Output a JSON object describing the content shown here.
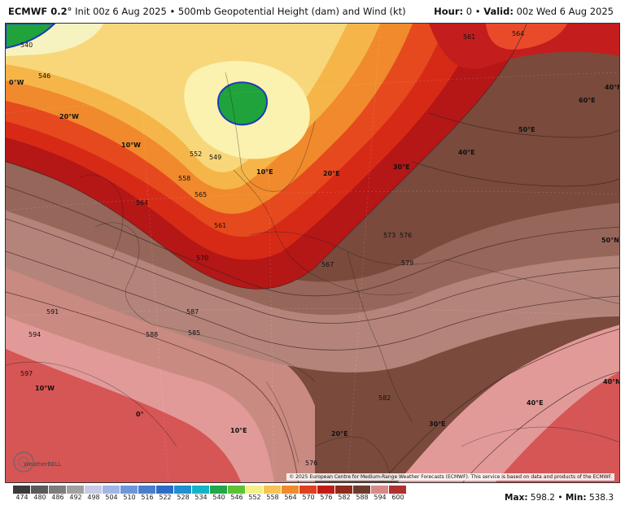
{
  "header": {
    "model": "ECMWF 0.2°",
    "init": "Init 00z 6 Aug 2025",
    "bullet": "•",
    "product": "500mb Geopotential Height (dam) and Wind (kt)",
    "hour_label": "Hour:",
    "hour_value": "0",
    "valid_label": "Valid:",
    "valid_value": "00z Wed 6 Aug 2025"
  },
  "map": {
    "copyright": "© 2025 European Centre for Medium-Range Weather Forecasts (ECMWF). This service is based on data and products of the ECMWF.",
    "watermark": "WeatherBELL",
    "graticule_labels": [
      "0°W",
      "10°W",
      "20°W",
      "10°E",
      "20°E",
      "30°E",
      "40°E",
      "50°E",
      "60°E",
      "40°N",
      "50°N",
      "10°W",
      "0°",
      "10°E",
      "20°E",
      "30°E",
      "40°E",
      "40°N"
    ],
    "contour_labels": [
      "546",
      "540",
      "549",
      "552",
      "558",
      "561",
      "565",
      "564",
      "567",
      "570",
      "573",
      "576",
      "579",
      "582",
      "585",
      "587",
      "588",
      "591",
      "594",
      "597",
      "576",
      "561",
      "564"
    ]
  },
  "colorbar": {
    "levels": [
      "474",
      "480",
      "486",
      "492",
      "498",
      "504",
      "510",
      "516",
      "522",
      "528",
      "534",
      "540",
      "546",
      "552",
      "558",
      "564",
      "570",
      "576",
      "582",
      "588",
      "594",
      "600"
    ],
    "colors": [
      "#3b3b3b",
      "#5a5a5a",
      "#7d7d7d",
      "#a0a0a0",
      "#c9c9e8",
      "#9fb6e6",
      "#6f96dc",
      "#4a7dd0",
      "#2c6cc6",
      "#1f8fd0",
      "#16b4c8",
      "#21a84a",
      "#5fc234",
      "#f3f08a",
      "#f6c453",
      "#f08a2c",
      "#e0401e",
      "#c21a14",
      "#8e2a1e",
      "#6e3b2e",
      "#d98a86",
      "#b03030"
    ],
    "max_label": "Max:",
    "max_value": "598.2",
    "min_label": "Min:",
    "min_value": "538.3"
  }
}
